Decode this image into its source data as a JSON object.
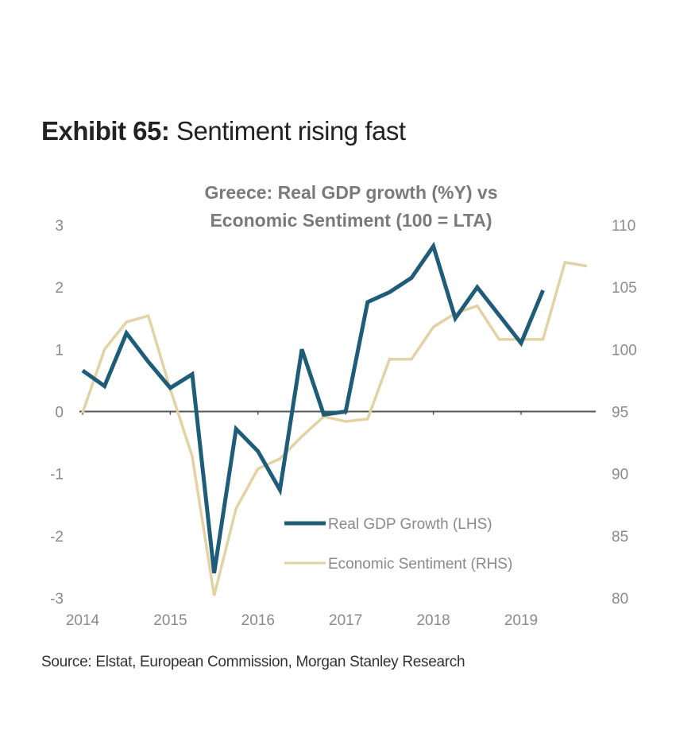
{
  "header": {
    "exhibit_label": "Exhibit 65:",
    "exhibit_title": "Sentiment rising fast"
  },
  "source": "Source: Elstat, European Commission, Morgan Stanley Research",
  "chart_data": {
    "type": "line",
    "title": [
      "Greece: Real GDP growth (%Y) vs",
      "Economic Sentiment (100 = LTA)"
    ],
    "x_unit": "quarter index from 2014 Q1",
    "x_ticks": [
      {
        "q": 0,
        "label": "2014"
      },
      {
        "q": 4,
        "label": "2015"
      },
      {
        "q": 8,
        "label": "2016"
      },
      {
        "q": 12,
        "label": "2017"
      },
      {
        "q": 16,
        "label": "2018"
      },
      {
        "q": 20,
        "label": "2019"
      }
    ],
    "y_left": {
      "range": [
        -3,
        3
      ],
      "ticks": [
        "3",
        "2",
        "1",
        "0",
        "-1",
        "-2",
        "-3"
      ]
    },
    "y_right": {
      "range": [
        80,
        110
      ],
      "ticks": [
        "110",
        "105",
        "100",
        "95",
        "90",
        "85",
        "80"
      ]
    },
    "grid": false,
    "legend_position": "bottom-right",
    "series": [
      {
        "name": "Real GDP Growth (LHS)",
        "axis": "left",
        "color": "#1f5c78",
        "values": [
          0.66,
          0.41,
          1.26,
          0.8,
          0.38,
          0.6,
          -2.6,
          -0.28,
          -0.64,
          -1.26,
          1.0,
          -0.05,
          0.0,
          1.76,
          1.92,
          2.15,
          2.66,
          1.5,
          2.0,
          1.55,
          1.1,
          1.95
        ]
      },
      {
        "name": "Economic Sentiment (RHS)",
        "axis": "right",
        "color": "#e2d2a4",
        "values": [
          94.9,
          100.0,
          102.2,
          102.7,
          96.8,
          91.4,
          80.2,
          87.2,
          90.4,
          91.2,
          93.0,
          94.6,
          94.2,
          94.4,
          99.2,
          99.2,
          101.8,
          102.9,
          103.5,
          100.8,
          100.8,
          100.8,
          107.0,
          106.7
        ]
      }
    ]
  }
}
